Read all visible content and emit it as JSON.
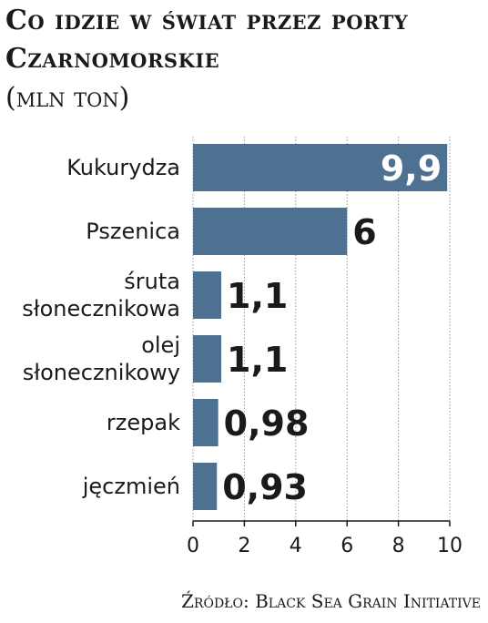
{
  "header": {
    "title": "Co idzie w świat przez porty Czarnomorskie",
    "subtitle": "(mln ton)"
  },
  "source": "Źródło: Black Sea Grain Initiative",
  "chart_data": {
    "type": "bar",
    "orientation": "horizontal",
    "categories": [
      [
        "Kukurydza"
      ],
      [
        "Pszenica"
      ],
      [
        "śruta",
        "słonecznikowa"
      ],
      [
        "olej",
        "słonecznikowy"
      ],
      [
        "rzepak"
      ],
      [
        "jęczmień"
      ]
    ],
    "values": [
      9.9,
      6,
      1.1,
      1.1,
      0.98,
      0.93
    ],
    "value_labels": [
      "9,9",
      "6",
      "1,1",
      "1,1",
      "0,98",
      "0,93"
    ],
    "xlim": [
      0,
      10
    ],
    "xticks": [
      0,
      2,
      4,
      6,
      8,
      10
    ],
    "bar_color": "#4f7191",
    "grid": "vertical"
  }
}
